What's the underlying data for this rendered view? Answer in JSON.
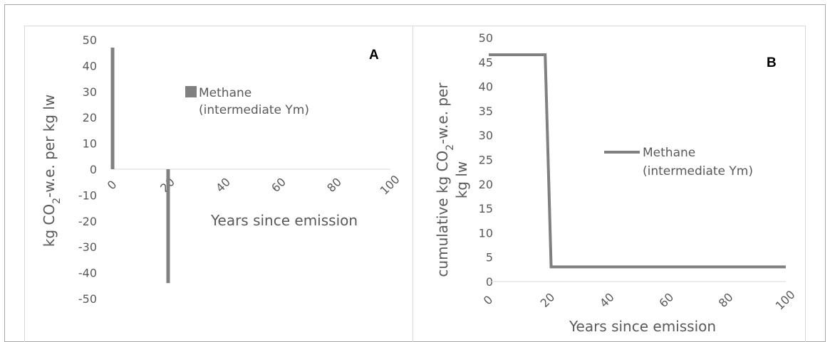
{
  "chart_data": [
    {
      "type": "bar",
      "panel_label": "A",
      "xlabel": "Years since emission",
      "ylabel": "kg CO2-w.e. per kg lw",
      "ylabel_parts": [
        "kg CO",
        "2",
        "-w.e. per kg lw"
      ],
      "ylim": [
        -50,
        50
      ],
      "y_ticks": [
        50,
        40,
        30,
        20,
        10,
        0,
        -10,
        -20,
        -30,
        -40,
        -50
      ],
      "xlim": [
        0,
        100
      ],
      "x_ticks": [
        0,
        20,
        40,
        60,
        80,
        100
      ],
      "legend_position": "upper-center",
      "series": [
        {
          "name": "Methane\n(intermediate Ym)",
          "legend_lines": [
            "Methane",
            "(intermediate Ym)"
          ],
          "color": "#808080",
          "points": [
            {
              "x": 0,
              "y": 47
            },
            {
              "x": 20,
              "y": -44
            }
          ]
        }
      ]
    },
    {
      "type": "line",
      "panel_label": "B",
      "xlabel": "Years since emission",
      "ylabel": "cumulative kg CO2-w.e. per kg lw",
      "ylabel_line1_parts": [
        "cumulative kg CO",
        "2",
        "-w.e. per"
      ],
      "ylabel_line2": "kg lw",
      "ylim": [
        0,
        50
      ],
      "y_ticks": [
        50,
        45,
        40,
        35,
        30,
        25,
        20,
        15,
        10,
        5,
        0
      ],
      "xlim": [
        0,
        100
      ],
      "x_ticks": [
        0,
        20,
        40,
        60,
        80,
        100
      ],
      "legend_position": "center",
      "series": [
        {
          "name": "Methane\n(intermediate Ym)",
          "legend_lines": [
            "Methane",
            "(intermediate Ym)"
          ],
          "color": "#808080",
          "x": [
            0,
            19,
            21,
            100
          ],
          "y": [
            46.5,
            46.5,
            3,
            3
          ]
        }
      ]
    }
  ],
  "colors": {
    "series": "#808080",
    "panel_border": "#d9d9d9",
    "outer_border": "#a6a6a6",
    "axis_line": "#d9d9d9",
    "text": "#595959"
  }
}
